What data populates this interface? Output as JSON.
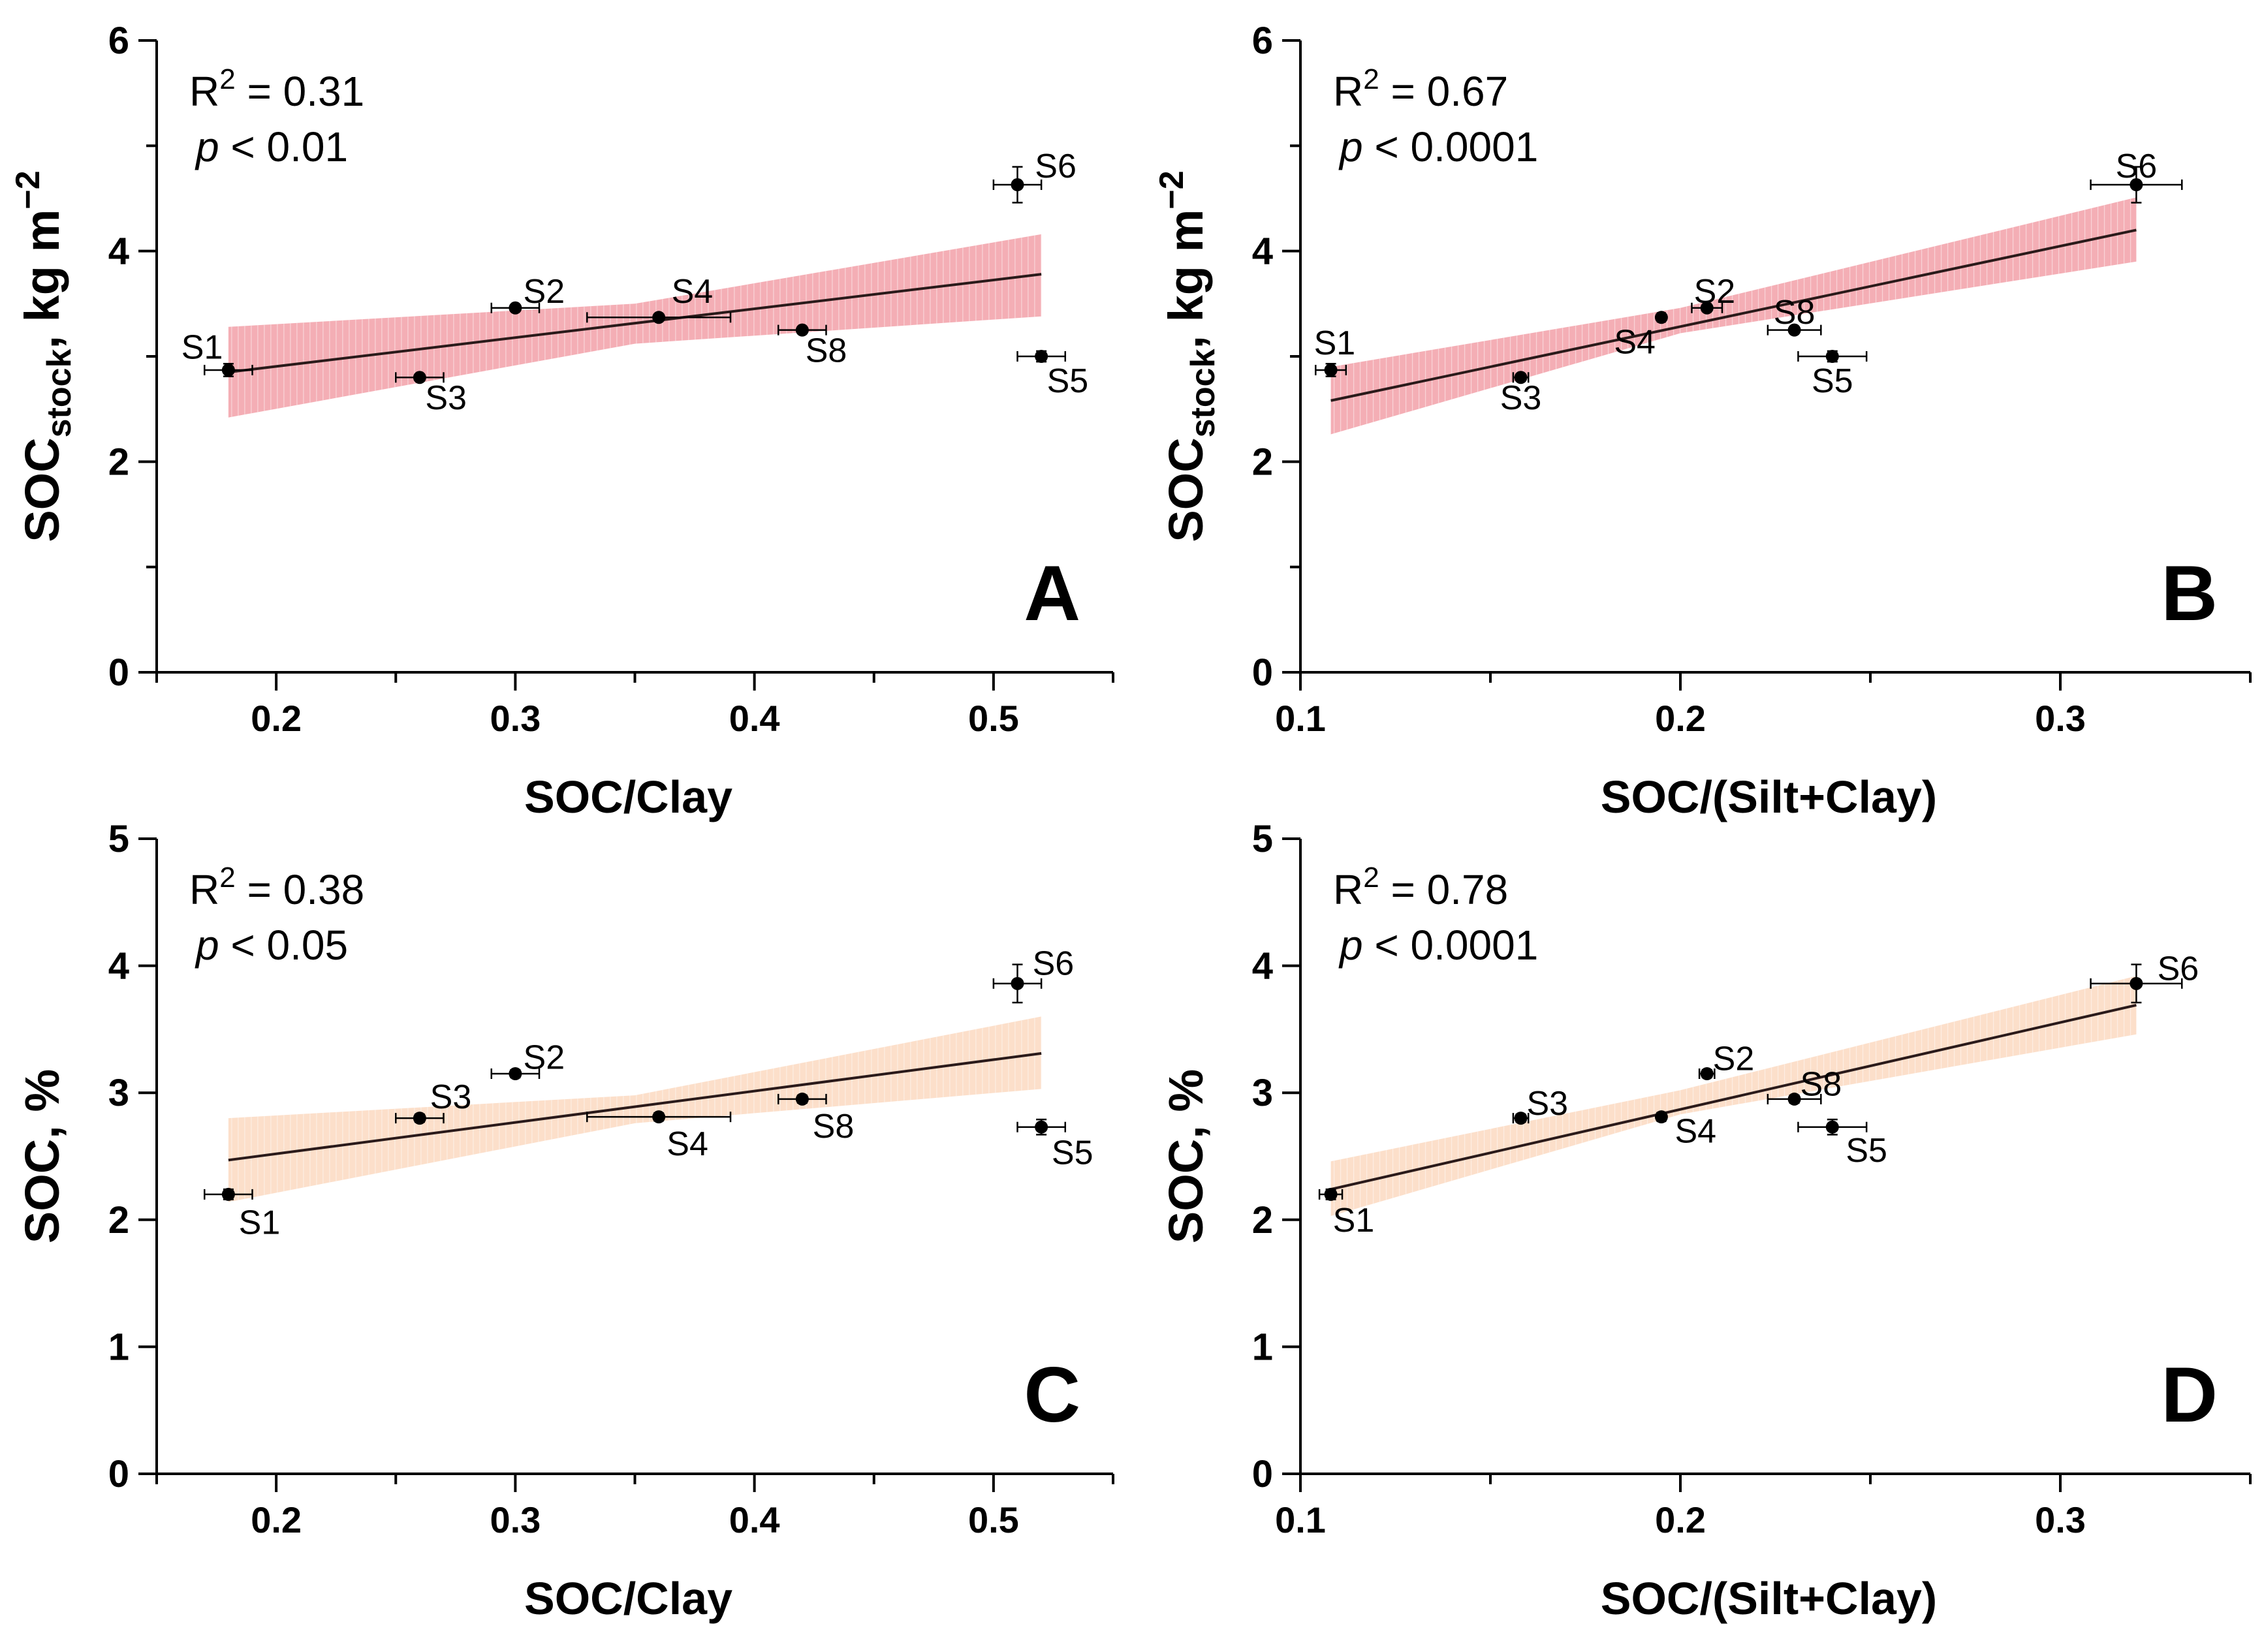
{
  "chart_data": [
    {
      "id": "A",
      "type": "scatter",
      "panel_letter": "A",
      "xlabel": "SOC/Clay",
      "ylabel_main": "SOC",
      "ylabel_sub": "stock",
      "ylabel_rest": ", kg m",
      "ylabel_sup": "−2",
      "xlim": [
        0.15,
        0.55
      ],
      "ylim": [
        0,
        6
      ],
      "x_ticks": [
        0.2,
        0.3,
        0.4,
        0.5
      ],
      "x_tick_labels": [
        "0.2",
        "0.3",
        "0.4",
        "0.5"
      ],
      "x_minor_ticks": [
        0.15,
        0.25,
        0.35,
        0.45,
        0.55
      ],
      "y_ticks": [
        0,
        2,
        4,
        6
      ],
      "y_tick_labels": [
        "0",
        "2",
        "4",
        "6"
      ],
      "y_minor_ticks": [
        1,
        3,
        5
      ],
      "r2_label": "R",
      "r2_sup": "2",
      "r2_value": " = 0.31",
      "p_label": "p",
      "p_value": " < 0.01",
      "band_color": "#f08c96",
      "fit": {
        "x": [
          0.18,
          0.52
        ],
        "y": [
          2.85,
          3.78
        ]
      },
      "band": {
        "x": [
          0.18,
          0.35,
          0.52
        ],
        "lower": [
          2.42,
          3.12,
          3.38
        ],
        "upper": [
          3.28,
          3.5,
          4.16
        ]
      },
      "points": [
        {
          "label": "S1",
          "x": 0.18,
          "y": 2.87,
          "xerr": 0.01,
          "yerr": 0.06,
          "lx": -0.011,
          "ly": 0.22
        },
        {
          "label": "S2",
          "x": 0.3,
          "y": 3.46,
          "xerr": 0.01,
          "yerr": 0.03,
          "lx": 0.012,
          "ly": 0.16
        },
        {
          "label": "S3",
          "x": 0.26,
          "y": 2.8,
          "xerr": 0.01,
          "yerr": 0.03,
          "lx": 0.011,
          "ly": -0.19
        },
        {
          "label": "S4",
          "x": 0.36,
          "y": 3.37,
          "xerr": 0.03,
          "yerr": 0.03,
          "lx": 0.014,
          "ly": 0.25
        },
        {
          "label": "S5",
          "x": 0.52,
          "y": 3.0,
          "xerr": 0.01,
          "yerr": 0.05,
          "lx": 0.011,
          "ly": -0.23
        },
        {
          "label": "S6",
          "x": 0.51,
          "y": 4.63,
          "xerr": 0.01,
          "yerr": 0.17,
          "lx": 0.016,
          "ly": 0.18
        },
        {
          "label": "S8",
          "x": 0.42,
          "y": 3.25,
          "xerr": 0.01,
          "yerr": 0.03,
          "lx": 0.01,
          "ly": -0.19
        }
      ]
    },
    {
      "id": "B",
      "type": "scatter",
      "panel_letter": "B",
      "xlabel": "SOC/(Silt+Clay)",
      "ylabel_main": "SOC",
      "ylabel_sub": "stock",
      "ylabel_rest": ", kg m",
      "ylabel_sup": "−2",
      "xlim": [
        0.1,
        0.35
      ],
      "ylim": [
        0,
        6
      ],
      "x_ticks": [
        0.1,
        0.2,
        0.3
      ],
      "x_tick_labels": [
        "0.1",
        "0.2",
        "0.3"
      ],
      "x_minor_ticks": [
        0.15,
        0.25,
        0.35
      ],
      "y_ticks": [
        0,
        2,
        4,
        6
      ],
      "y_tick_labels": [
        "0",
        "2",
        "4",
        "6"
      ],
      "y_minor_ticks": [
        1,
        3,
        5
      ],
      "r2_label": "R",
      "r2_sup": "2",
      "r2_value": " = 0.67",
      "p_label": "p",
      "p_value": " < 0.0001",
      "band_color": "#f08c96",
      "fit": {
        "x": [
          0.108,
          0.32
        ],
        "y": [
          2.58,
          4.2
        ]
      },
      "band": {
        "x": [
          0.108,
          0.2,
          0.32
        ],
        "lower": [
          2.26,
          3.22,
          3.9
        ],
        "upper": [
          2.9,
          3.46,
          4.51
        ]
      },
      "points": [
        {
          "label": "S1",
          "x": 0.108,
          "y": 2.87,
          "xerr": 0.004,
          "yerr": 0.06,
          "lx": 0.001,
          "ly": 0.26
        },
        {
          "label": "S2",
          "x": 0.207,
          "y": 3.46,
          "xerr": 0.004,
          "yerr": 0.03,
          "lx": 0.002,
          "ly": 0.16
        },
        {
          "label": "S3",
          "x": 0.158,
          "y": 2.8,
          "xerr": 0.002,
          "yerr": 0.03,
          "lx": 0.0,
          "ly": -0.19
        },
        {
          "label": "S4",
          "x": 0.195,
          "y": 3.37,
          "xerr": 0.001,
          "yerr": 0.03,
          "lx": -0.007,
          "ly": -0.23
        },
        {
          "label": "S5",
          "x": 0.24,
          "y": 3.0,
          "xerr": 0.009,
          "yerr": 0.05,
          "lx": 0.0,
          "ly": -0.23
        },
        {
          "label": "S6",
          "x": 0.32,
          "y": 4.63,
          "xerr": 0.012,
          "yerr": 0.17,
          "lx": 0.0,
          "ly": 0.18
        },
        {
          "label": "S8",
          "x": 0.23,
          "y": 3.25,
          "xerr": 0.007,
          "yerr": 0.03,
          "lx": 0.0,
          "ly": 0.17
        }
      ]
    },
    {
      "id": "C",
      "type": "scatter",
      "panel_letter": "C",
      "xlabel": "SOC/Clay",
      "ylabel_main": "SOC, %",
      "ylabel_sub": "",
      "ylabel_rest": "",
      "ylabel_sup": "",
      "xlim": [
        0.15,
        0.55
      ],
      "ylim": [
        0,
        5
      ],
      "x_ticks": [
        0.2,
        0.3,
        0.4,
        0.5
      ],
      "x_tick_labels": [
        "0.2",
        "0.3",
        "0.4",
        "0.5"
      ],
      "x_minor_ticks": [
        0.15,
        0.25,
        0.35,
        0.45,
        0.55
      ],
      "y_ticks": [
        0,
        1,
        2,
        3,
        4,
        5
      ],
      "y_tick_labels": [
        "0",
        "1",
        "2",
        "3",
        "4",
        "5"
      ],
      "y_minor_ticks": [],
      "r2_label": "R",
      "r2_sup": "2",
      "r2_value": " = 0.38",
      "p_label": "p",
      "p_value": " < 0.05",
      "band_color": "#fbd2b4",
      "fit": {
        "x": [
          0.18,
          0.52
        ],
        "y": [
          2.47,
          3.31
        ]
      },
      "band": {
        "x": [
          0.18,
          0.35,
          0.52
        ],
        "lower": [
          2.14,
          2.76,
          3.03
        ],
        "upper": [
          2.8,
          2.98,
          3.6
        ]
      },
      "points": [
        {
          "label": "S1",
          "x": 0.18,
          "y": 2.2,
          "xerr": 0.01,
          "yerr": 0.04,
          "lx": 0.013,
          "ly": -0.22
        },
        {
          "label": "S2",
          "x": 0.3,
          "y": 3.15,
          "xerr": 0.01,
          "yerr": 0.03,
          "lx": 0.012,
          "ly": 0.13
        },
        {
          "label": "S3",
          "x": 0.26,
          "y": 2.8,
          "xerr": 0.01,
          "yerr": 0.03,
          "lx": 0.013,
          "ly": 0.17
        },
        {
          "label": "S4",
          "x": 0.36,
          "y": 2.81,
          "xerr": 0.03,
          "yerr": 0.03,
          "lx": 0.012,
          "ly": -0.21
        },
        {
          "label": "S5",
          "x": 0.52,
          "y": 2.73,
          "xerr": 0.01,
          "yerr": 0.06,
          "lx": 0.013,
          "ly": -0.2
        },
        {
          "label": "S6",
          "x": 0.51,
          "y": 3.86,
          "xerr": 0.01,
          "yerr": 0.15,
          "lx": 0.015,
          "ly": 0.16
        },
        {
          "label": "S8",
          "x": 0.42,
          "y": 2.95,
          "xerr": 0.01,
          "yerr": 0.03,
          "lx": 0.013,
          "ly": -0.21
        }
      ]
    },
    {
      "id": "D",
      "type": "scatter",
      "panel_letter": "D",
      "xlabel": "SOC/(Silt+Clay)",
      "ylabel_main": "SOC, %",
      "ylabel_sub": "",
      "ylabel_rest": "",
      "ylabel_sup": "",
      "xlim": [
        0.1,
        0.35
      ],
      "ylim": [
        0,
        5
      ],
      "x_ticks": [
        0.1,
        0.2,
        0.3
      ],
      "x_tick_labels": [
        "0.1",
        "0.2",
        "0.3"
      ],
      "x_minor_ticks": [
        0.15,
        0.25,
        0.35
      ],
      "y_ticks": [
        0,
        1,
        2,
        3,
        4,
        5
      ],
      "y_tick_labels": [
        "0",
        "1",
        "2",
        "3",
        "4",
        "5"
      ],
      "y_minor_ticks": [],
      "r2_label": "R",
      "r2_sup": "2",
      "r2_value": " = 0.78",
      "p_label": "p",
      "p_value": " < 0.0001",
      "band_color": "#fbd2b4",
      "fit": {
        "x": [
          0.108,
          0.32
        ],
        "y": [
          2.24,
          3.69
        ]
      },
      "band": {
        "x": [
          0.108,
          0.2,
          0.32
        ],
        "lower": [
          2.03,
          2.83,
          3.46
        ],
        "upper": [
          2.46,
          3.02,
          3.92
        ]
      },
      "points": [
        {
          "label": "S1",
          "x": 0.108,
          "y": 2.2,
          "xerr": 0.003,
          "yerr": 0.04,
          "lx": 0.006,
          "ly": -0.2
        },
        {
          "label": "S2",
          "x": 0.207,
          "y": 3.15,
          "xerr": 0.002,
          "yerr": 0.03,
          "lx": 0.007,
          "ly": 0.12
        },
        {
          "label": "S3",
          "x": 0.158,
          "y": 2.8,
          "xerr": 0.002,
          "yerr": 0.03,
          "lx": 0.007,
          "ly": 0.12
        },
        {
          "label": "S4",
          "x": 0.195,
          "y": 2.81,
          "xerr": 0.001,
          "yerr": 0.03,
          "lx": 0.009,
          "ly": -0.11
        },
        {
          "label": "S5",
          "x": 0.24,
          "y": 2.73,
          "xerr": 0.009,
          "yerr": 0.06,
          "lx": 0.009,
          "ly": -0.18
        },
        {
          "label": "S6",
          "x": 0.32,
          "y": 3.86,
          "xerr": 0.012,
          "yerr": 0.15,
          "lx": 0.011,
          "ly": 0.12
        },
        {
          "label": "S8",
          "x": 0.23,
          "y": 2.95,
          "xerr": 0.007,
          "yerr": 0.03,
          "lx": 0.007,
          "ly": 0.12
        }
      ]
    }
  ]
}
